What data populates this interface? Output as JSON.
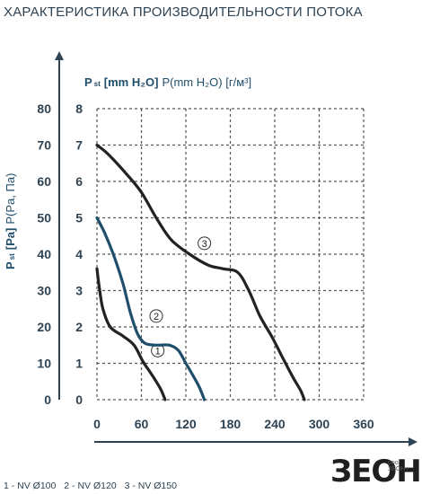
{
  "header": {
    "title": "ХАРАКТЕРИСТИКА ПРОИЗВОДИТЕЛЬНОСТИ ПОТОКА"
  },
  "legend": {
    "items": [
      "1 - NV Ø100",
      "2 - NV Ø120",
      "3 - NV Ø150"
    ]
  },
  "brand": {
    "logo": "ЗЕОН",
    "sub_top": "ооо",
    "sub_bottom": "ЗЕОН+"
  },
  "colors": {
    "text": "#2e4353",
    "axis": "#333333",
    "grid": "#555555",
    "series_dark": "#222222",
    "series_blue": "#1f4e6b"
  },
  "chart_data": {
    "type": "line",
    "y_label_left": {
      "main": "P",
      "sub": "st",
      "bold": "[Pa]",
      "normal": "P(Pa, Па)"
    },
    "y_label_right": {
      "main": "P",
      "sub": "st",
      "bold": "[mm H₂O]",
      "normal": "P(mm H₂O) [г/м³]"
    },
    "xlim": [
      0,
      360
    ],
    "x_ticks": [
      "0",
      "60",
      "120",
      "180",
      "240",
      "300",
      "360"
    ],
    "ylim_left": [
      0,
      80
    ],
    "y_ticks_left": [
      "0",
      "10",
      "20",
      "30",
      "40",
      "50",
      "60",
      "70",
      "80"
    ],
    "ylim_right": [
      0,
      8
    ],
    "y_ticks_right": [
      "0",
      "1",
      "2",
      "3",
      "4",
      "5",
      "6",
      "7",
      "8"
    ],
    "grid": true,
    "series": [
      {
        "name": "1",
        "label": "1",
        "points": [
          [
            0,
            3.6
          ],
          [
            3,
            3.1
          ],
          [
            8,
            2.5
          ],
          [
            18,
            2.0
          ],
          [
            35,
            1.75
          ],
          [
            50,
            1.5
          ],
          [
            62,
            1.05
          ],
          [
            72,
            0.75
          ],
          [
            80,
            0.5
          ],
          [
            87,
            0.25
          ],
          [
            92,
            0
          ]
        ],
        "label_at": [
          82,
          1.35
        ]
      },
      {
        "name": "2",
        "label": "2",
        "points": [
          [
            0,
            5.0
          ],
          [
            10,
            4.6
          ],
          [
            22,
            4.0
          ],
          [
            35,
            3.2
          ],
          [
            45,
            2.4
          ],
          [
            55,
            1.8
          ],
          [
            65,
            1.55
          ],
          [
            80,
            1.5
          ],
          [
            98,
            1.5
          ],
          [
            110,
            1.35
          ],
          [
            120,
            1.0
          ],
          [
            130,
            0.65
          ],
          [
            138,
            0.35
          ],
          [
            145,
            0
          ]
        ],
        "label_at": [
          80,
          2.3
        ]
      },
      {
        "name": "3",
        "label": "3",
        "points": [
          [
            0,
            7.0
          ],
          [
            15,
            6.75
          ],
          [
            40,
            6.2
          ],
          [
            60,
            5.7
          ],
          [
            80,
            5.0
          ],
          [
            100,
            4.4
          ],
          [
            125,
            4.0
          ],
          [
            150,
            3.7
          ],
          [
            170,
            3.6
          ],
          [
            190,
            3.5
          ],
          [
            205,
            3.0
          ],
          [
            220,
            2.3
          ],
          [
            237,
            1.7
          ],
          [
            252,
            1.1
          ],
          [
            265,
            0.6
          ],
          [
            275,
            0.25
          ],
          [
            280,
            0
          ]
        ],
        "label_at": [
          145,
          4.3
        ]
      }
    ]
  }
}
